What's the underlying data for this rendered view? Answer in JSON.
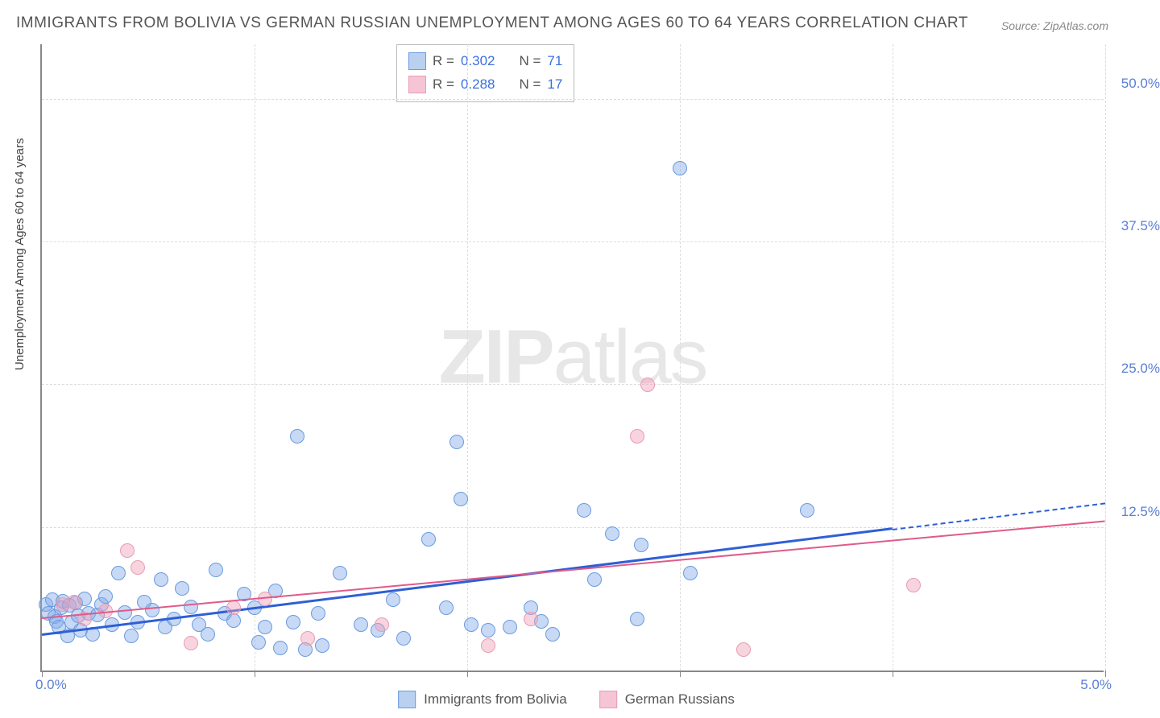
{
  "title": "IMMIGRANTS FROM BOLIVIA VS GERMAN RUSSIAN UNEMPLOYMENT AMONG AGES 60 TO 64 YEARS CORRELATION CHART",
  "source": "Source: ZipAtlas.com",
  "ylabel": "Unemployment Among Ages 60 to 64 years",
  "watermark_a": "ZIP",
  "watermark_b": "atlas",
  "chart": {
    "type": "scatter",
    "xlim": [
      0,
      5
    ],
    "ylim": [
      0,
      55
    ],
    "yticks": [
      {
        "v": 12.5,
        "label": "12.5%"
      },
      {
        "v": 25,
        "label": "25.0%"
      },
      {
        "v": 37.5,
        "label": "37.5%"
      },
      {
        "v": 50,
        "label": "50.0%"
      }
    ],
    "xgrid": [
      1,
      2,
      3,
      4,
      5
    ],
    "xtick_left": "0.0%",
    "xtick_right": "5.0%",
    "background": "#ffffff",
    "grid_color": "#dddddd"
  },
  "series": [
    {
      "name": "Immigrants from Bolivia",
      "color_fill": "rgba(130,170,230,0.45)",
      "color_stroke": "#6a9be0",
      "swatch_fill": "#b9d0f0",
      "swatch_border": "#6a9be0",
      "marker_r": 9,
      "r_label": "R =",
      "r_value": "0.302",
      "n_label": "N =",
      "n_value": "71",
      "trend": {
        "x1": 0,
        "y1": 3.0,
        "x2": 4.0,
        "y2": 12.3,
        "ext_x2": 5.0,
        "ext_y2": 14.6,
        "color": "#2e5fd6",
        "width": 3
      },
      "points": [
        [
          0.02,
          5.8
        ],
        [
          0.03,
          5.0
        ],
        [
          0.05,
          6.2
        ],
        [
          0.06,
          4.7
        ],
        [
          0.07,
          4.3
        ],
        [
          0.08,
          3.8
        ],
        [
          0.09,
          5.5
        ],
        [
          0.1,
          6.1
        ],
        [
          0.12,
          3.0
        ],
        [
          0.13,
          5.7
        ],
        [
          0.14,
          4.2
        ],
        [
          0.16,
          5.9
        ],
        [
          0.17,
          4.8
        ],
        [
          0.18,
          3.5
        ],
        [
          0.2,
          6.3
        ],
        [
          0.22,
          5.0
        ],
        [
          0.24,
          3.2
        ],
        [
          0.26,
          4.9
        ],
        [
          0.28,
          5.8
        ],
        [
          0.3,
          6.5
        ],
        [
          0.33,
          4.0
        ],
        [
          0.36,
          8.5
        ],
        [
          0.39,
          5.1
        ],
        [
          0.42,
          3.0
        ],
        [
          0.45,
          4.2
        ],
        [
          0.48,
          6.0
        ],
        [
          0.52,
          5.3
        ],
        [
          0.56,
          8.0
        ],
        [
          0.58,
          3.8
        ],
        [
          0.62,
          4.5
        ],
        [
          0.66,
          7.2
        ],
        [
          0.7,
          5.6
        ],
        [
          0.74,
          4.0
        ],
        [
          0.78,
          3.2
        ],
        [
          0.82,
          8.8
        ],
        [
          0.86,
          5.0
        ],
        [
          0.9,
          4.4
        ],
        [
          0.95,
          6.7
        ],
        [
          1.0,
          5.5
        ],
        [
          1.02,
          2.5
        ],
        [
          1.05,
          3.8
        ],
        [
          1.1,
          7.0
        ],
        [
          1.12,
          2.0
        ],
        [
          1.18,
          4.2
        ],
        [
          1.2,
          20.5
        ],
        [
          1.24,
          1.8
        ],
        [
          1.3,
          5.0
        ],
        [
          1.32,
          2.2
        ],
        [
          1.4,
          8.5
        ],
        [
          1.5,
          4.0
        ],
        [
          1.58,
          3.5
        ],
        [
          1.65,
          6.2
        ],
        [
          1.7,
          2.8
        ],
        [
          1.82,
          11.5
        ],
        [
          1.9,
          5.5
        ],
        [
          1.95,
          20.0
        ],
        [
          1.97,
          15.0
        ],
        [
          2.02,
          4.0
        ],
        [
          2.1,
          3.5
        ],
        [
          2.2,
          3.8
        ],
        [
          2.3,
          5.5
        ],
        [
          2.35,
          4.3
        ],
        [
          2.4,
          3.2
        ],
        [
          2.55,
          14.0
        ],
        [
          2.6,
          8.0
        ],
        [
          2.68,
          12.0
        ],
        [
          2.8,
          4.5
        ],
        [
          2.82,
          11.0
        ],
        [
          3.0,
          44.0
        ],
        [
          3.05,
          8.5
        ],
        [
          3.6,
          14.0
        ]
      ]
    },
    {
      "name": "German Russians",
      "color_fill": "rgba(240,160,185,0.45)",
      "color_stroke": "#e89cb5",
      "swatch_fill": "#f5c5d5",
      "swatch_border": "#e89cb5",
      "marker_r": 9,
      "r_label": "R =",
      "r_value": "0.288",
      "n_label": "N =",
      "n_value": "17",
      "trend": {
        "x1": 0,
        "y1": 4.5,
        "x2": 5.0,
        "y2": 13.0,
        "color": "#e05a8a",
        "width": 2
      },
      "points": [
        [
          0.1,
          5.8
        ],
        [
          0.15,
          6.0
        ],
        [
          0.2,
          4.5
        ],
        [
          0.3,
          5.2
        ],
        [
          0.4,
          10.5
        ],
        [
          0.45,
          9.0
        ],
        [
          0.7,
          2.4
        ],
        [
          0.9,
          5.5
        ],
        [
          1.05,
          6.3
        ],
        [
          1.25,
          2.8
        ],
        [
          1.6,
          4.0
        ],
        [
          2.1,
          2.2
        ],
        [
          2.3,
          4.5
        ],
        [
          2.8,
          20.5
        ],
        [
          2.85,
          25.0
        ],
        [
          3.3,
          1.8
        ],
        [
          4.1,
          7.5
        ]
      ]
    }
  ]
}
